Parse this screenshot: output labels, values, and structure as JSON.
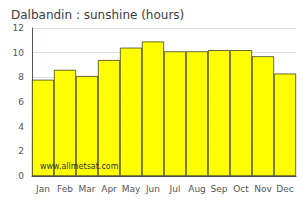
{
  "chart_data": {
    "type": "bar",
    "title": "Dalbandin : sunshine (hours)",
    "categories": [
      "Jan",
      "Feb",
      "Mar",
      "Apr",
      "May",
      "Jun",
      "Jul",
      "Aug",
      "Sep",
      "Oct",
      "Nov",
      "Dec"
    ],
    "values": [
      7.8,
      8.6,
      8.1,
      9.4,
      10.4,
      10.9,
      10.1,
      10.1,
      10.2,
      10.2,
      9.7,
      8.3
    ],
    "color": "#ffff00",
    "ylim": [
      0,
      12
    ],
    "yticks": [
      0,
      2,
      4,
      6,
      8,
      10,
      12
    ],
    "grid": true,
    "annotations": [
      "www.allmetsat.com"
    ]
  }
}
